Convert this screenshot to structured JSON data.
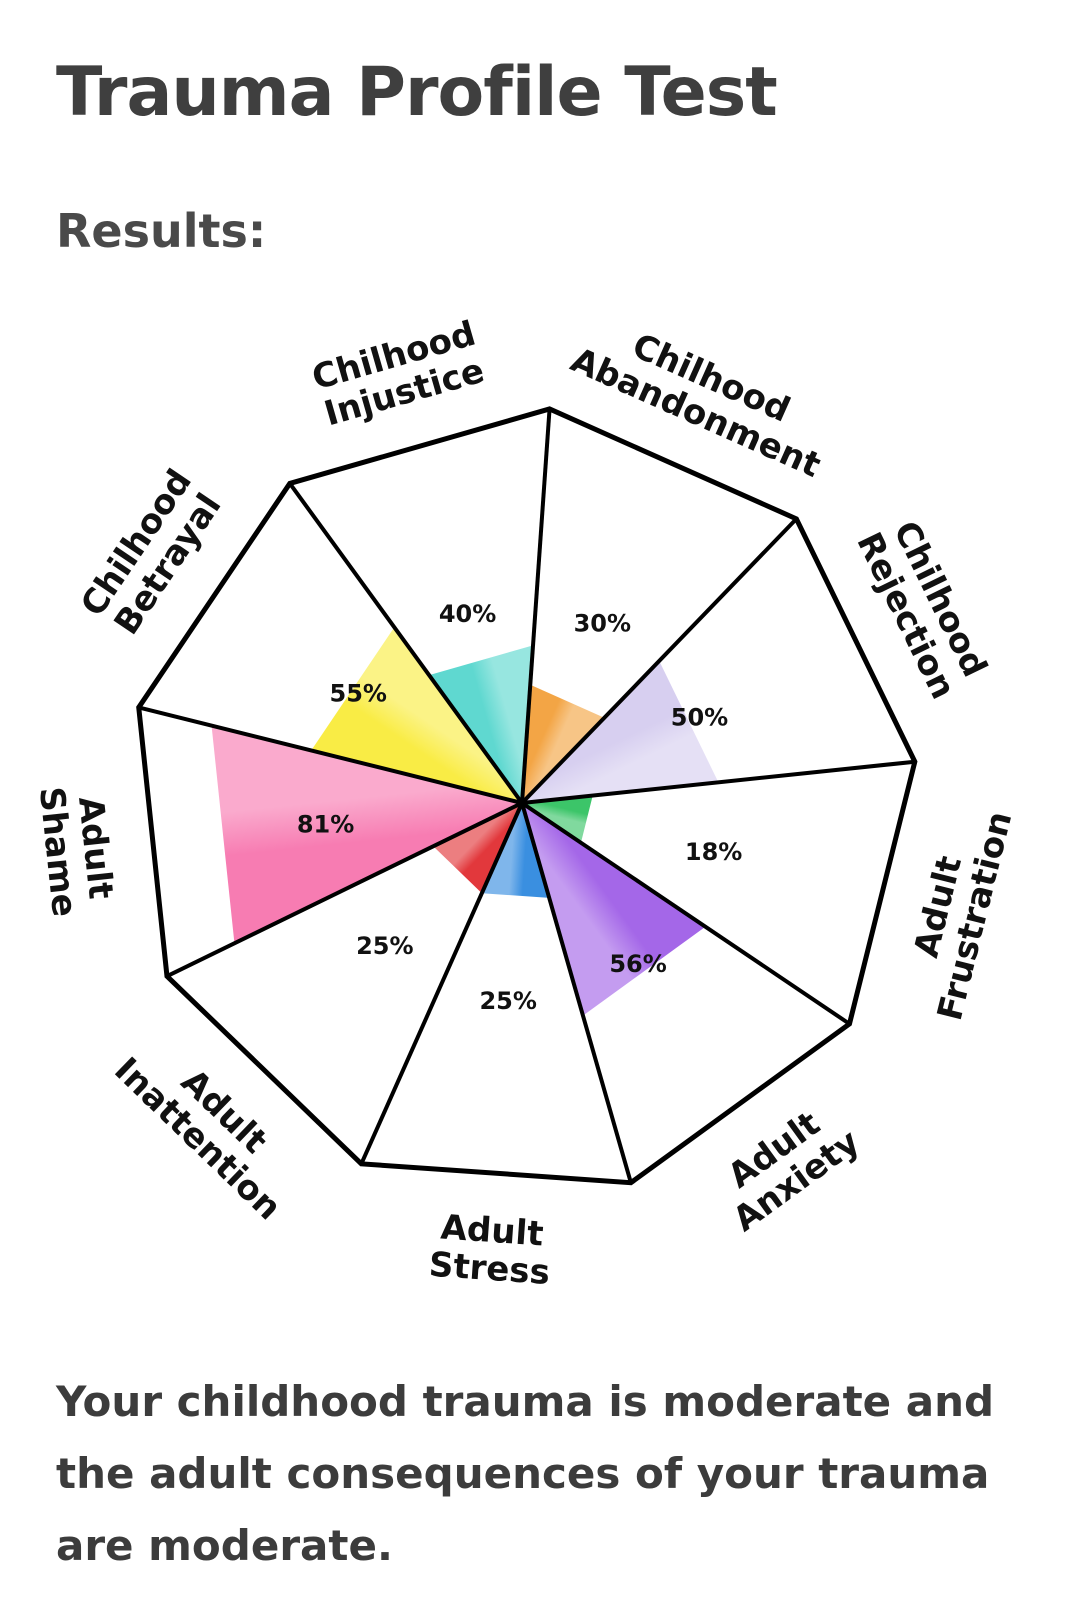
{
  "page": {
    "title": "Trauma Profile Test",
    "results_heading": "Results:",
    "summary": "Your childhood trauma is moderate and the adult consequences of your trauma are moderate."
  },
  "chart_data": {
    "type": "polar-area",
    "max": 100,
    "segments": [
      {
        "label_lines": [
          "Chilhood",
          "Abandonment"
        ],
        "value": 30,
        "value_label": "30%",
        "color": "#f3a545"
      },
      {
        "label_lines": [
          "Chilhood",
          "Rejection"
        ],
        "value": 50,
        "value_label": "50%",
        "color": "#d7cff0"
      },
      {
        "label_lines": [
          "Adult",
          "Frustration"
        ],
        "value": 18,
        "value_label": "18%",
        "color": "#3cc569"
      },
      {
        "label_lines": [
          "Adult",
          "Anxiety"
        ],
        "value": 56,
        "value_label": "56%",
        "color": "#a467e8"
      },
      {
        "label_lines": [
          "Adult",
          "Stress"
        ],
        "value": 25,
        "value_label": "25%",
        "color": "#3a8fe0"
      },
      {
        "label_lines": [
          "Adult",
          "Inattention"
        ],
        "value": 25,
        "value_label": "25%",
        "color": "#e2383c"
      },
      {
        "label_lines": [
          "Adult",
          "Shame"
        ],
        "value": 81,
        "value_label": "81%",
        "color": "#f77cb2"
      },
      {
        "label_lines": [
          "Chilhood",
          "Betrayal"
        ],
        "value": 55,
        "value_label": "55%",
        "color": "#f9ec45"
      },
      {
        "label_lines": [
          "Chilhood",
          "Injustice"
        ],
        "value": 40,
        "value_label": "40%",
        "color": "#5fd8d0"
      }
    ]
  }
}
